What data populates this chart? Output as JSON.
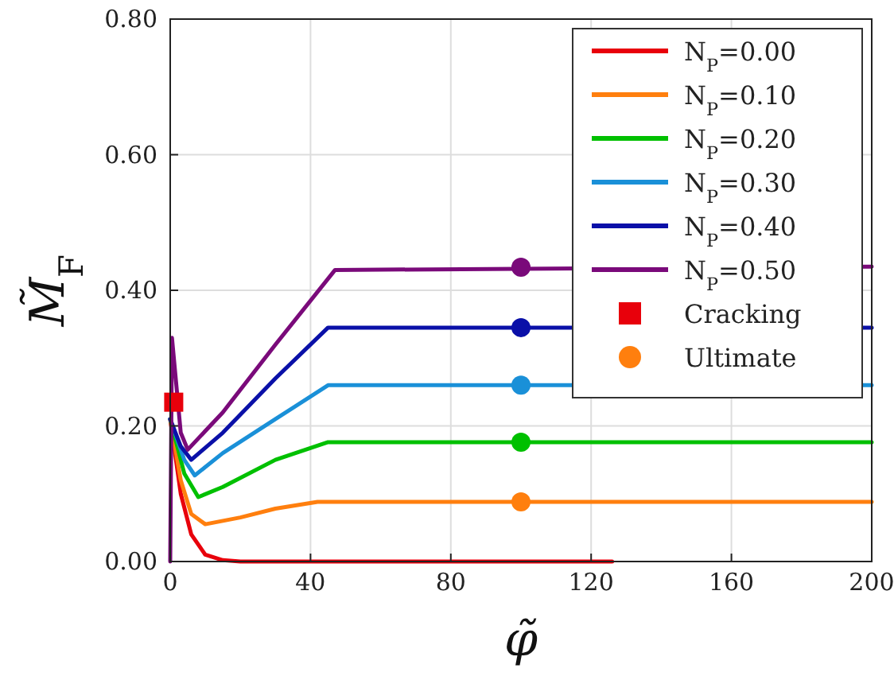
{
  "chart_data": {
    "type": "line",
    "xlabel": "φ̃",
    "ylabel": "M̃$_{F}$",
    "xlim": [
      0,
      200
    ],
    "ylim": [
      0,
      0.8
    ],
    "xticks": [
      0,
      40,
      80,
      120,
      160,
      200
    ],
    "yticks": [
      {
        "value": 0,
        "label": "0.00"
      },
      {
        "value": 0.2,
        "label": "0.20"
      },
      {
        "value": 0.4,
        "label": "0.40"
      },
      {
        "value": 0.6,
        "label": "0.60"
      },
      {
        "value": 0.8,
        "label": "0.80"
      }
    ],
    "grid": true,
    "legend": "top right",
    "line_style": "solid",
    "marker": "none",
    "series": [
      {
        "name": "N$_{P}$=0.00",
        "color": "#e8000b",
        "x": [
          0,
          3,
          6,
          10,
          15,
          20,
          126
        ],
        "values": [
          0.21,
          0.1,
          0.04,
          0.01,
          0.002,
          0,
          0
        ]
      },
      {
        "name": "N$_{P}$=0.10",
        "color": "#ff7f0e",
        "x": [
          0,
          3,
          6,
          10,
          20,
          30,
          42,
          200
        ],
        "values": [
          0.21,
          0.12,
          0.07,
          0.055,
          0.065,
          0.078,
          0.088,
          0.088
        ]
      },
      {
        "name": "N$_{P}$=0.20",
        "color": "#00c000",
        "x": [
          0,
          4,
          8,
          15,
          30,
          45,
          200
        ],
        "values": [
          0.21,
          0.13,
          0.095,
          0.11,
          0.15,
          0.176,
          0.176
        ]
      },
      {
        "name": "N$_{P}$=0.30",
        "color": "#1a90d8",
        "x": [
          0,
          4,
          7,
          15,
          30,
          45,
          200
        ],
        "values": [
          0.21,
          0.15,
          0.127,
          0.16,
          0.21,
          0.26,
          0.26
        ]
      },
      {
        "name": "N$_{P}$=0.40",
        "color": "#0a10a8",
        "x": [
          0,
          3,
          6,
          15,
          30,
          45,
          200
        ],
        "values": [
          0.21,
          0.17,
          0.15,
          0.19,
          0.27,
          0.345,
          0.345
        ]
      },
      {
        "name": "N$_{P}$=0.50",
        "color": "#7a0a7a",
        "x": [
          0,
          0.5,
          3,
          5,
          15,
          30,
          47,
          200
        ],
        "values": [
          0,
          0.33,
          0.19,
          0.165,
          0.22,
          0.32,
          0.43,
          0.435
        ]
      },
      {
        "name": "Cracking",
        "type": "scatter",
        "marker": "square",
        "color": "#e8000b",
        "x": [
          1
        ],
        "values": [
          0.235
        ]
      },
      {
        "name": "Ultimate",
        "type": "scatter",
        "marker": "circle",
        "color": "#ff7f0e",
        "colors": [
          "#ff7f0e",
          "#00c000",
          "#1a90d8",
          "#0a10a8",
          "#7a0a7a"
        ],
        "x": [
          100,
          100,
          100,
          100,
          100
        ],
        "values": [
          0.088,
          0.176,
          0.26,
          0.345,
          0.434
        ]
      }
    ]
  }
}
